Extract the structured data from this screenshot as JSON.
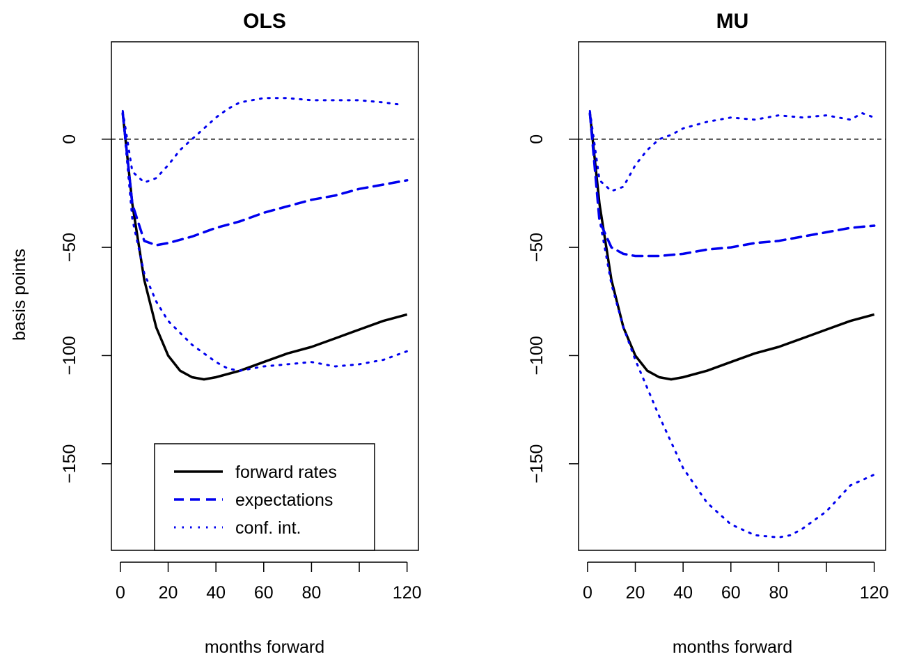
{
  "colors": {
    "forward": "#000000",
    "expect": "#0000ee",
    "conf": "#0000ee",
    "zero": "#000000"
  },
  "ylabel": "basis points",
  "legend": {
    "placement": "bottom-center",
    "items": [
      {
        "label": "forward rates",
        "style": "solid",
        "color": "#000000"
      },
      {
        "label": "expectations",
        "style": "dashed",
        "color": "#0000ee"
      },
      {
        "label": "conf. int.",
        "style": "dotted",
        "color": "#0000ee"
      }
    ]
  },
  "chart_data": [
    {
      "type": "line",
      "title": "OLS",
      "xlabel": "months forward",
      "ylabel": "basis points",
      "xlim": [
        1,
        120
      ],
      "ylim": [
        -190,
        45
      ],
      "xticks": [
        0,
        20,
        40,
        60,
        80,
        120
      ],
      "yticks": [
        0,
        -50,
        -100,
        -150
      ],
      "reference_line": {
        "y": 0,
        "style": "dashed"
      },
      "series": [
        {
          "name": "forward rates",
          "style": "solid",
          "x": [
            1,
            5,
            10,
            15,
            20,
            25,
            30,
            35,
            40,
            50,
            60,
            70,
            80,
            90,
            100,
            110,
            120
          ],
          "y": [
            12,
            -30,
            -65,
            -87,
            -100,
            -107,
            -110,
            -111,
            -110,
            -107,
            -103,
            -99,
            -96,
            -92,
            -88,
            -84,
            -81
          ]
        },
        {
          "name": "expectations",
          "style": "dashed",
          "x": [
            1,
            5,
            10,
            15,
            20,
            30,
            40,
            50,
            60,
            70,
            80,
            90,
            100,
            110,
            120
          ],
          "y": [
            12,
            -30,
            -47,
            -49,
            -48,
            -45,
            -41,
            -38,
            -34,
            -31,
            -28,
            -26,
            -23,
            -21,
            -19
          ]
        },
        {
          "name": "conf. int. upper",
          "style": "dotted",
          "x": [
            1,
            5,
            10,
            15,
            20,
            25,
            30,
            35,
            40,
            45,
            50,
            60,
            70,
            80,
            90,
            100,
            110,
            117
          ],
          "y": [
            13,
            -15,
            -20,
            -18,
            -12,
            -5,
            0,
            5,
            10,
            14,
            17,
            19,
            19,
            18,
            18,
            18,
            17,
            16
          ]
        },
        {
          "name": "conf. int. lower",
          "style": "dotted",
          "x": [
            1,
            5,
            10,
            15,
            20,
            30,
            40,
            45,
            50,
            55,
            60,
            70,
            80,
            90,
            100,
            110,
            120
          ],
          "y": [
            12,
            -37,
            -62,
            -75,
            -84,
            -95,
            -103,
            -106,
            -107,
            -106,
            -105,
            -104,
            -103,
            -105,
            -104,
            -102,
            -98
          ]
        }
      ]
    },
    {
      "type": "line",
      "title": "MU",
      "xlabel": "months forward",
      "ylabel": "",
      "xlim": [
        1,
        120
      ],
      "ylim": [
        -190,
        45
      ],
      "xticks": [
        0,
        20,
        40,
        60,
        80,
        120
      ],
      "yticks": [
        0,
        -50,
        -100,
        -150
      ],
      "reference_line": {
        "y": 0,
        "style": "dashed"
      },
      "series": [
        {
          "name": "forward rates",
          "style": "solid",
          "x": [
            1,
            5,
            10,
            15,
            20,
            25,
            30,
            35,
            40,
            50,
            60,
            70,
            80,
            90,
            100,
            110,
            120
          ],
          "y": [
            12,
            -30,
            -65,
            -87,
            -100,
            -107,
            -110,
            -111,
            -110,
            -107,
            -103,
            -99,
            -96,
            -92,
            -88,
            -84,
            -81
          ]
        },
        {
          "name": "expectations",
          "style": "dashed",
          "x": [
            1,
            5,
            10,
            15,
            20,
            30,
            40,
            50,
            60,
            70,
            80,
            90,
            100,
            110,
            120
          ],
          "y": [
            12,
            -38,
            -50,
            -53,
            -54,
            -54,
            -53,
            -51,
            -50,
            -48,
            -47,
            -45,
            -43,
            -41,
            -40
          ]
        },
        {
          "name": "conf. int. upper",
          "style": "dotted",
          "x": [
            1,
            5,
            10,
            15,
            20,
            25,
            30,
            35,
            40,
            50,
            60,
            70,
            80,
            90,
            100,
            110,
            115,
            120
          ],
          "y": [
            13,
            -19,
            -24,
            -22,
            -12,
            -5,
            0,
            2,
            5,
            8,
            10,
            9,
            11,
            10,
            11,
            9,
            12,
            10
          ]
        },
        {
          "name": "conf. int. lower",
          "style": "dotted",
          "x": [
            1,
            5,
            10,
            15,
            20,
            25,
            30,
            40,
            50,
            60,
            70,
            80,
            85,
            90,
            100,
            110,
            120
          ],
          "y": [
            12,
            -37,
            -67,
            -87,
            -102,
            -115,
            -128,
            -152,
            -168,
            -178,
            -183,
            -184,
            -183,
            -180,
            -172,
            -160,
            -155
          ]
        }
      ]
    }
  ]
}
